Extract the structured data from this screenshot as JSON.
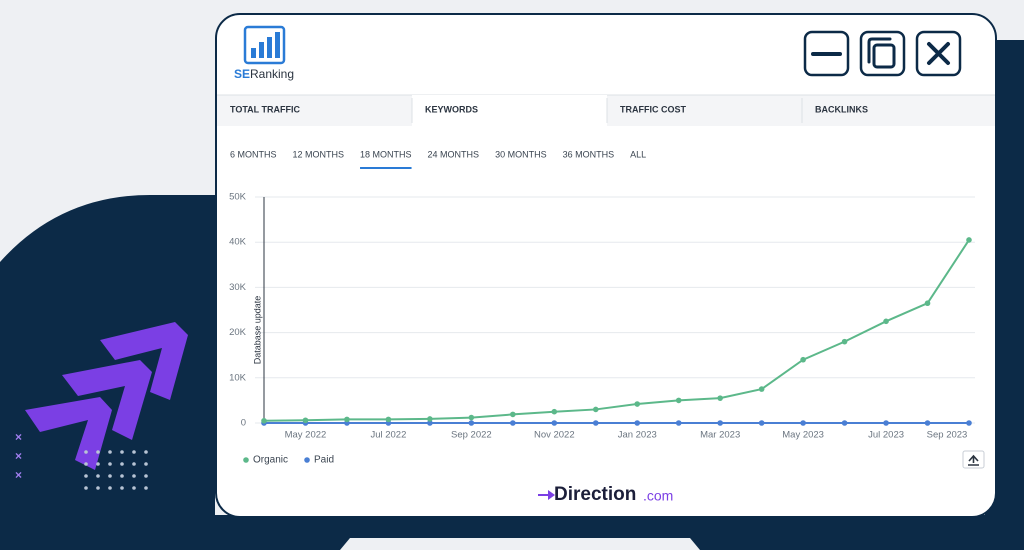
{
  "app": {
    "logo_prefix": "SE",
    "logo_name": "Ranking"
  },
  "tabs": [
    "TOTAL TRAFFIC",
    "KEYWORDS",
    "TRAFFIC COST",
    "BACKLINKS"
  ],
  "active_tab": 1,
  "periods": [
    "6 MONTHS",
    "12 MONTHS",
    "18 MONTHS",
    "24 MONTHS",
    "30 MONTHS",
    "36 MONTHS",
    "ALL"
  ],
  "active_period": 2,
  "chart_data": {
    "type": "line",
    "categories": [
      null,
      "May 2022",
      null,
      "Jul 2022",
      null,
      "Sep 2022",
      null,
      "Nov 2022",
      null,
      "Jan 2023",
      null,
      "Mar 2023",
      null,
      "May 2023",
      null,
      "Jul 2023",
      null,
      "Sep 2023"
    ],
    "series": [
      {
        "name": "Organic",
        "color": "#5cb88a",
        "values": [
          500,
          600,
          800,
          800,
          900,
          1200,
          1900,
          2500,
          3000,
          4200,
          5000,
          5500,
          7500,
          14000,
          18000,
          22500,
          26500,
          40500
        ]
      },
      {
        "name": "Paid",
        "color": "#4a7fd4",
        "values": [
          0,
          0,
          0,
          0,
          0,
          0,
          0,
          0,
          0,
          0,
          0,
          0,
          0,
          0,
          0,
          0,
          0,
          0
        ]
      }
    ],
    "ylim": [
      0,
      50000
    ],
    "yticks": [
      0,
      {
        "value": 10000,
        "label": "10K"
      },
      {
        "value": 20000,
        "label": "20K"
      },
      {
        "value": 30000,
        "label": "30K"
      },
      {
        "value": 40000,
        "label": "40K"
      },
      {
        "value": 50000,
        "label": "50K"
      }
    ],
    "grid": true,
    "annotation": "Database update"
  },
  "footer": {
    "brand": "Direction",
    "suffix": ".com"
  }
}
